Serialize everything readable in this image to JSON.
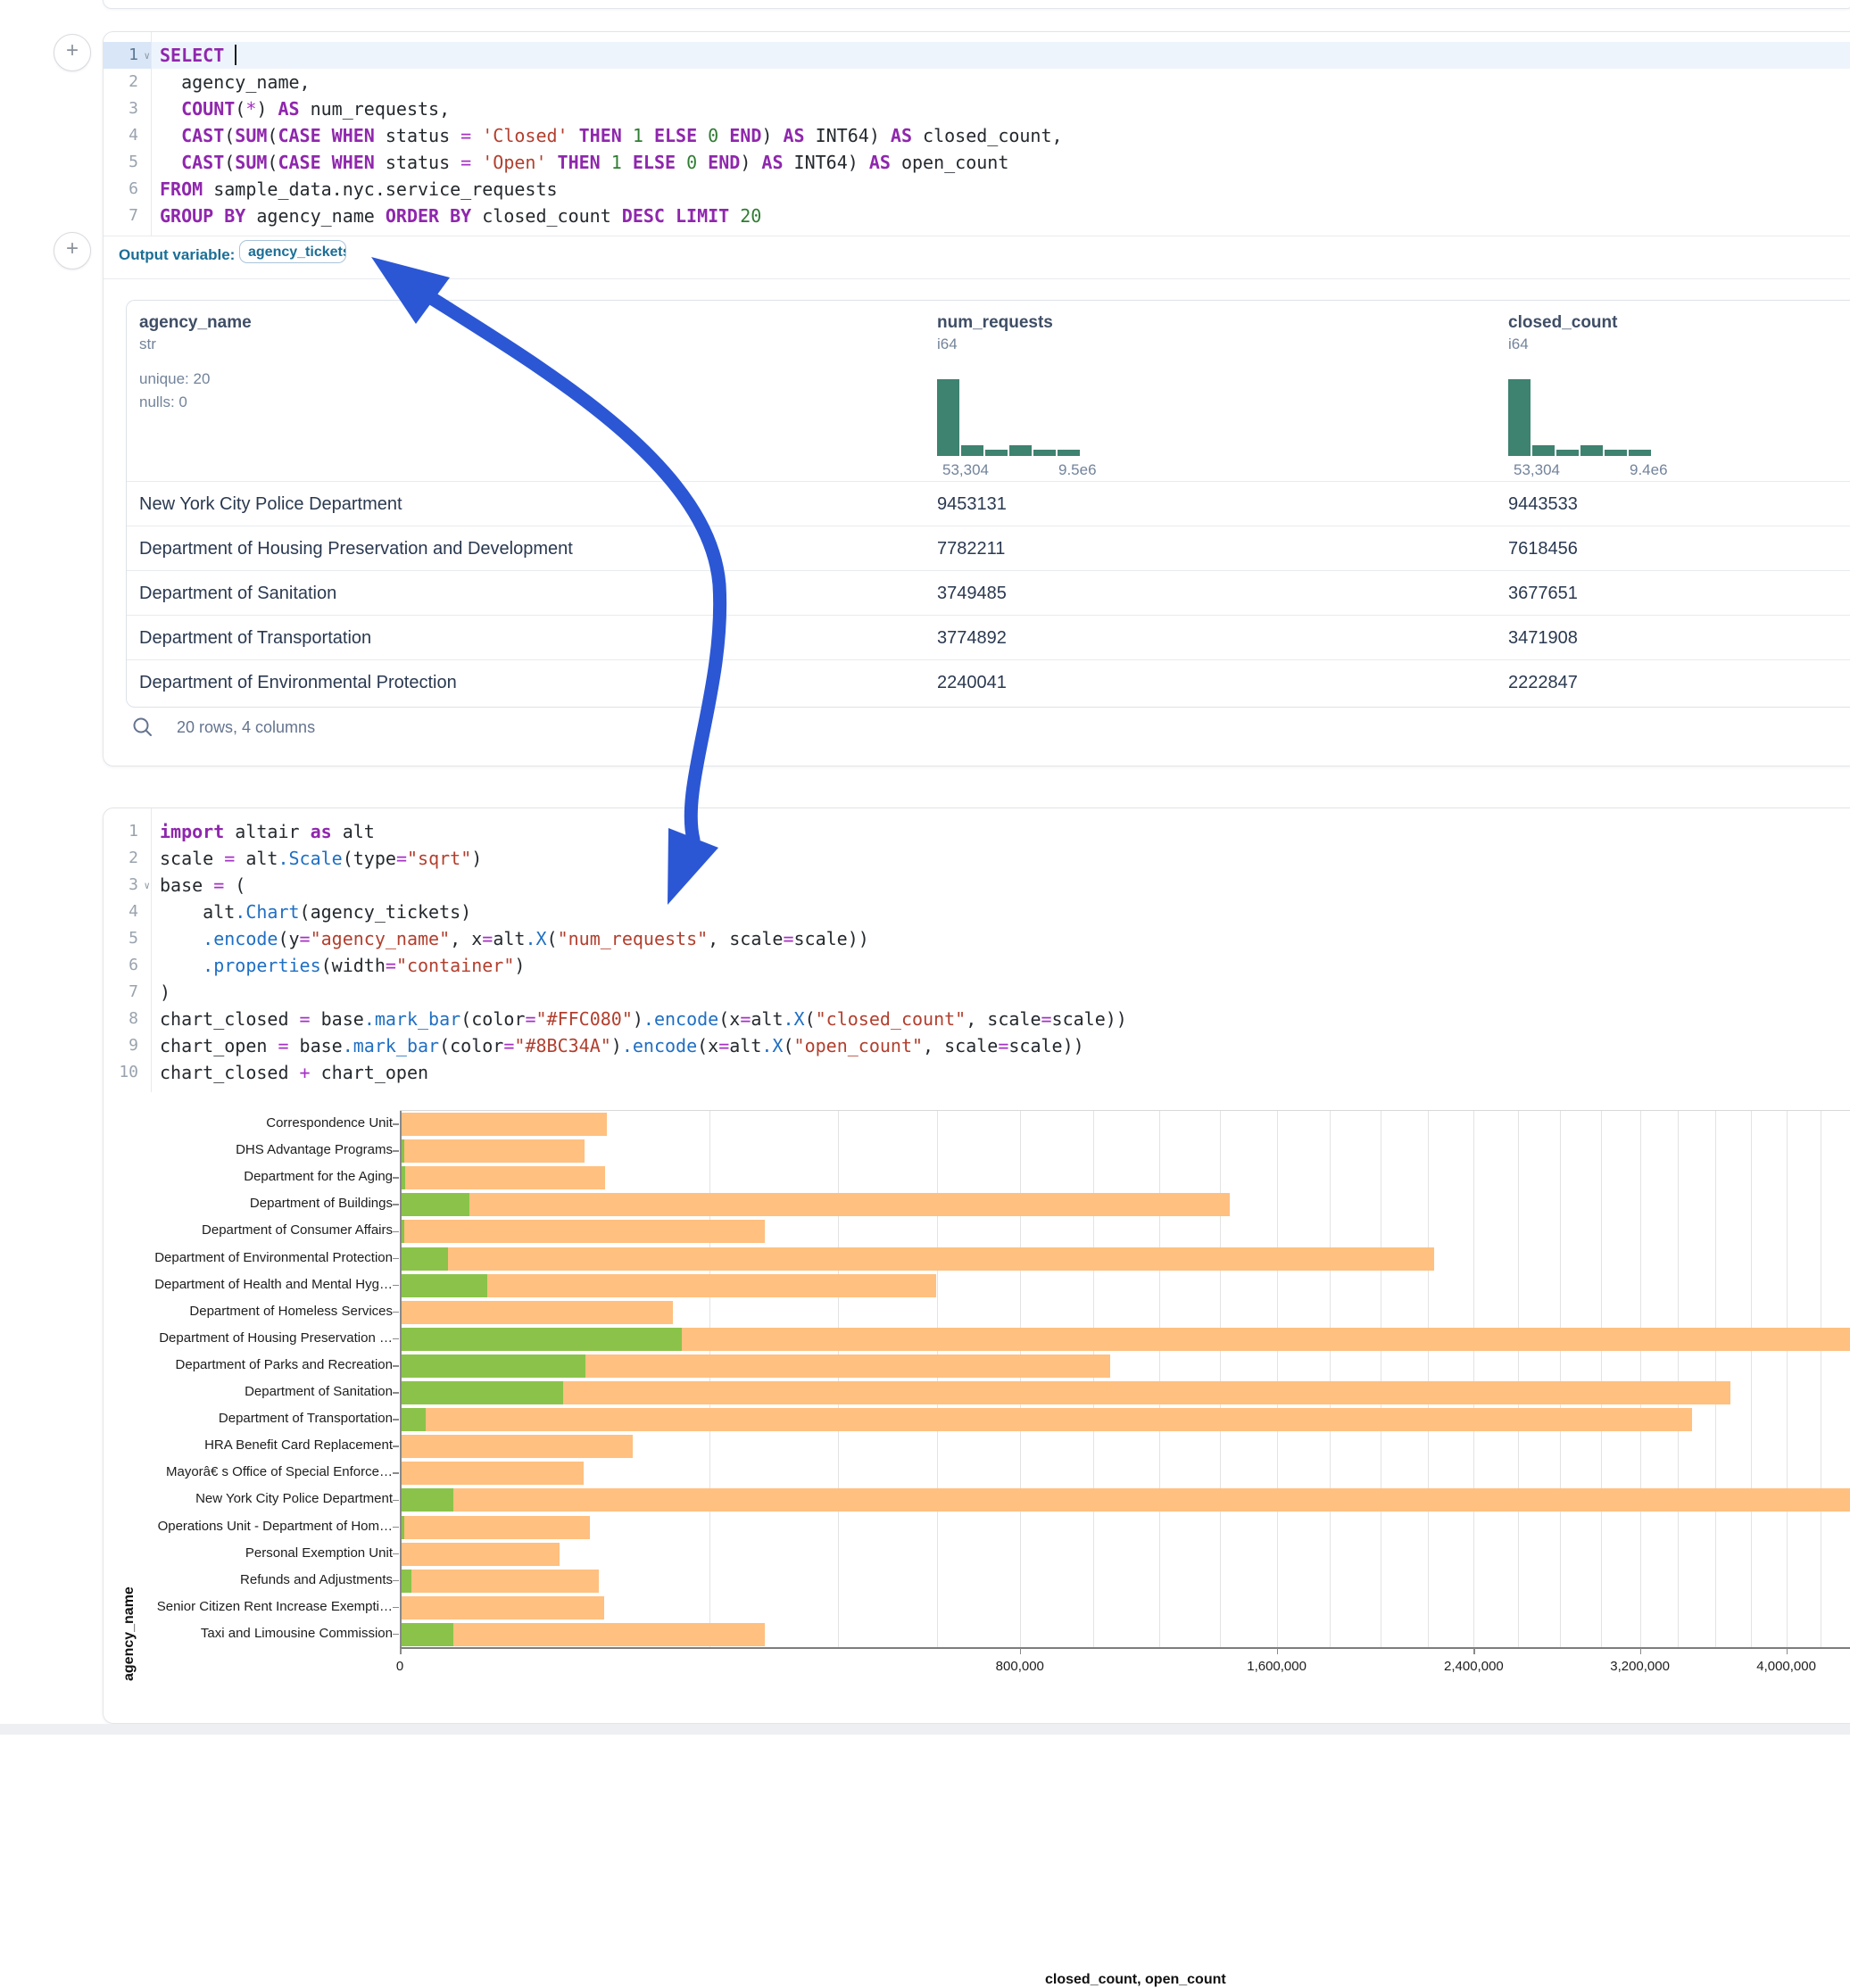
{
  "colors": {
    "arrow_blue": "#2B57D5",
    "hist_teal": "#3e8270",
    "closed_bar": "#FFC080",
    "open_bar": "#8BC34A"
  },
  "sql_cell": {
    "add_button_label": "+",
    "code_lines": [
      {
        "num": "1",
        "chevron": true,
        "active": true,
        "cursor": true,
        "tokens": [
          [
            "kw",
            "SELECT"
          ],
          [
            "id",
            " "
          ]
        ]
      },
      {
        "num": "2",
        "tokens": [
          [
            "id",
            "  agency_name,"
          ]
        ]
      },
      {
        "num": "3",
        "tokens": [
          [
            "kw",
            "  COUNT"
          ],
          [
            "punct",
            "("
          ],
          [
            "op",
            "*"
          ],
          [
            "punct",
            ")"
          ],
          [
            "kw",
            " AS"
          ],
          [
            "id",
            " num_requests,"
          ]
        ]
      },
      {
        "num": "4",
        "tokens": [
          [
            "kw",
            "  CAST"
          ],
          [
            "punct",
            "("
          ],
          [
            "kw",
            "SUM"
          ],
          [
            "punct",
            "("
          ],
          [
            "kw",
            "CASE WHEN"
          ],
          [
            "id",
            " status "
          ],
          [
            "op",
            "="
          ],
          [
            "str",
            " 'Closed'"
          ],
          [
            "kw",
            " THEN"
          ],
          [
            "num",
            " 1"
          ],
          [
            "kw",
            " ELSE"
          ],
          [
            "num",
            " 0"
          ],
          [
            "kw",
            " END"
          ],
          [
            "punct",
            ")"
          ],
          [
            "kw",
            " AS"
          ],
          [
            "id",
            " INT64"
          ],
          [
            "punct",
            ")"
          ],
          [
            "kw",
            " AS"
          ],
          [
            "id",
            " closed_count,"
          ]
        ]
      },
      {
        "num": "5",
        "tokens": [
          [
            "kw",
            "  CAST"
          ],
          [
            "punct",
            "("
          ],
          [
            "kw",
            "SUM"
          ],
          [
            "punct",
            "("
          ],
          [
            "kw",
            "CASE WHEN"
          ],
          [
            "id",
            " status "
          ],
          [
            "op",
            "="
          ],
          [
            "str",
            " 'Open'"
          ],
          [
            "kw",
            " THEN"
          ],
          [
            "num",
            " 1"
          ],
          [
            "kw",
            " ELSE"
          ],
          [
            "num",
            " 0"
          ],
          [
            "kw",
            " END"
          ],
          [
            "punct",
            ")"
          ],
          [
            "kw",
            " AS"
          ],
          [
            "id",
            " INT64"
          ],
          [
            "punct",
            ")"
          ],
          [
            "kw",
            " AS"
          ],
          [
            "id",
            " open_count"
          ]
        ]
      },
      {
        "num": "6",
        "tokens": [
          [
            "kw",
            "FROM"
          ],
          [
            "id",
            " sample_data.nyc.service_requests"
          ]
        ]
      },
      {
        "num": "7",
        "tokens": [
          [
            "kw",
            "GROUP BY"
          ],
          [
            "id",
            " agency_name"
          ],
          [
            "kw",
            " ORDER BY"
          ],
          [
            "id",
            " closed_count"
          ],
          [
            "kw",
            " DESC"
          ],
          [
            "kw",
            " LIMIT"
          ],
          [
            "num",
            " 20"
          ]
        ]
      }
    ],
    "output_variable_label": "Output variable:",
    "output_variable_value": "agency_tickets",
    "table": {
      "columns": [
        {
          "name": "agency_name",
          "type": "str",
          "stats": [
            "unique: 20",
            "nulls: 0"
          ]
        },
        {
          "name": "num_requests",
          "type": "i64",
          "hist": {
            "bars": [
              100,
              14,
              8,
              14,
              8,
              8
            ],
            "min_label": "53,304",
            "max_label": "9.5e6"
          }
        },
        {
          "name": "closed_count",
          "type": "i64",
          "hist": {
            "bars": [
              100,
              14,
              8,
              14,
              8,
              8
            ],
            "min_label": "53,304",
            "max_label": "9.4e6"
          }
        }
      ],
      "rows": [
        [
          "New York City Police Department",
          "9453131",
          "9443533"
        ],
        [
          "Department of Housing Preservation and Development",
          "7782211",
          "7618456"
        ],
        [
          "Department of Sanitation",
          "3749485",
          "3677651"
        ],
        [
          "Department of Transportation",
          "3774892",
          "3471908"
        ],
        [
          "Department of Environmental Protection",
          "2240041",
          "2222847"
        ]
      ],
      "footer": "20 rows, 4 columns"
    }
  },
  "python_cell": {
    "code_lines": [
      {
        "num": "1",
        "tokens": [
          [
            "kw",
            "import"
          ],
          [
            "id",
            " altair "
          ],
          [
            "kw",
            "as"
          ],
          [
            "id",
            " alt"
          ]
        ]
      },
      {
        "num": "2",
        "tokens": [
          [
            "id",
            "scale "
          ],
          [
            "op",
            "="
          ],
          [
            "id",
            " alt"
          ],
          [
            "fn",
            ".Scale"
          ],
          [
            "punct",
            "("
          ],
          [
            "id",
            "type"
          ],
          [
            "op",
            "="
          ],
          [
            "str",
            "\"sqrt\""
          ],
          [
            "punct",
            ")"
          ]
        ]
      },
      {
        "num": "3",
        "chevron": true,
        "tokens": [
          [
            "id",
            "base "
          ],
          [
            "op",
            "="
          ],
          [
            "id",
            " ("
          ]
        ]
      },
      {
        "num": "4",
        "tokens": [
          [
            "id",
            "    alt"
          ],
          [
            "fn",
            ".Chart"
          ],
          [
            "punct",
            "("
          ],
          [
            "id",
            "agency_tickets"
          ],
          [
            "punct",
            ")"
          ]
        ]
      },
      {
        "num": "5",
        "tokens": [
          [
            "fn",
            "    .encode"
          ],
          [
            "punct",
            "("
          ],
          [
            "id",
            "y"
          ],
          [
            "op",
            "="
          ],
          [
            "str",
            "\"agency_name\""
          ],
          [
            "id",
            ", x"
          ],
          [
            "op",
            "="
          ],
          [
            "id",
            "alt"
          ],
          [
            "fn",
            ".X"
          ],
          [
            "punct",
            "("
          ],
          [
            "str",
            "\"num_requests\""
          ],
          [
            "id",
            ", scale"
          ],
          [
            "op",
            "="
          ],
          [
            "id",
            "scale"
          ],
          [
            "punct",
            "))"
          ]
        ]
      },
      {
        "num": "6",
        "tokens": [
          [
            "fn",
            "    .properties"
          ],
          [
            "punct",
            "("
          ],
          [
            "id",
            "width"
          ],
          [
            "op",
            "="
          ],
          [
            "str",
            "\"container\""
          ],
          [
            "punct",
            ")"
          ]
        ]
      },
      {
        "num": "7",
        "tokens": [
          [
            "id",
            ")"
          ]
        ]
      },
      {
        "num": "8",
        "tokens": [
          [
            "id",
            "chart_closed "
          ],
          [
            "op",
            "="
          ],
          [
            "id",
            " base"
          ],
          [
            "fn",
            ".mark_bar"
          ],
          [
            "punct",
            "("
          ],
          [
            "id",
            "color"
          ],
          [
            "op",
            "="
          ],
          [
            "str",
            "\"#FFC080\""
          ],
          [
            "punct",
            ")"
          ],
          [
            "fn",
            ".encode"
          ],
          [
            "punct",
            "("
          ],
          [
            "id",
            "x"
          ],
          [
            "op",
            "="
          ],
          [
            "id",
            "alt"
          ],
          [
            "fn",
            ".X"
          ],
          [
            "punct",
            "("
          ],
          [
            "str",
            "\"closed_count\""
          ],
          [
            "id",
            ", scale"
          ],
          [
            "op",
            "="
          ],
          [
            "id",
            "scale"
          ],
          [
            "punct",
            "))"
          ]
        ]
      },
      {
        "num": "9",
        "tokens": [
          [
            "id",
            "chart_open "
          ],
          [
            "op",
            "="
          ],
          [
            "id",
            " base"
          ],
          [
            "fn",
            ".mark_bar"
          ],
          [
            "punct",
            "("
          ],
          [
            "id",
            "color"
          ],
          [
            "op",
            "="
          ],
          [
            "str",
            "\"#8BC34A\""
          ],
          [
            "punct",
            ")"
          ],
          [
            "fn",
            ".encode"
          ],
          [
            "punct",
            "("
          ],
          [
            "id",
            "x"
          ],
          [
            "op",
            "="
          ],
          [
            "id",
            "alt"
          ],
          [
            "fn",
            ".X"
          ],
          [
            "punct",
            "("
          ],
          [
            "str",
            "\"open_count\""
          ],
          [
            "id",
            ", scale"
          ],
          [
            "op",
            "="
          ],
          [
            "id",
            "scale"
          ],
          [
            "punct",
            "))"
          ]
        ]
      },
      {
        "num": "10",
        "tokens": [
          [
            "id",
            "chart_closed "
          ],
          [
            "op",
            "+"
          ],
          [
            "id",
            " chart_open"
          ]
        ]
      }
    ]
  },
  "chart_data": {
    "type": "bar",
    "orientation": "horizontal",
    "x_scale": "sqrt",
    "title": "",
    "xlabel": "closed_count, open_count",
    "ylabel": "agency_name",
    "grid": true,
    "gridline_step": 200000,
    "gridline_max": 4200000,
    "x_ticks": [
      0,
      800000,
      1600000,
      2400000,
      3200000,
      4000000
    ],
    "x_tick_labels": [
      "0",
      "800,000",
      "1,600,000",
      "2,400,000",
      "3,200,000",
      "4,000,000"
    ],
    "categories": [
      "Correspondence Unit",
      "DHS Advantage Programs",
      "Department for the Aging",
      "Department of Buildings",
      "Department of Consumer Affairs",
      "Department of Environmental Protection",
      "Department of Health and Mental Hyg…",
      "Department of Homeless Services",
      "Department of Housing Preservation …",
      "Department of Parks and Recreation",
      "Department of Sanitation",
      "Department of Transportation",
      "HRA Benefit Card Replacement",
      "Mayorâ€ s Office of Special Enforce…",
      "New York City Police Department",
      "Operations Unit - Department of Hom…",
      "Personal Exemption Unit",
      "Refunds and Adjustments",
      "Senior Citizen Rent Increase Exempti…",
      "Taxi and Limousine Commission"
    ],
    "series": [
      {
        "name": "closed_count",
        "color": "#FFC080",
        "values": [
          88700,
          70100,
          86900,
          1431000,
          275800,
          2222847,
          597200,
          153700,
          7618456,
          1047000,
          3677651,
          3471908,
          112100,
          69400,
          9443533,
          74700,
          52400,
          81900,
          86100,
          275800
        ]
      },
      {
        "name": "open_count",
        "color": "#8BC34A",
        "values": [
          0,
          30,
          40,
          9700,
          20,
          4700,
          15500,
          0,
          164000,
          70900,
          55100,
          1300,
          0,
          0,
          5750,
          30,
          0,
          250,
          0,
          5750
        ]
      }
    ]
  },
  "arrow": {
    "description": "hand-drawn arrow linking output variable to alt.Chart(agency_tickets)",
    "color": "#2B57D5"
  }
}
